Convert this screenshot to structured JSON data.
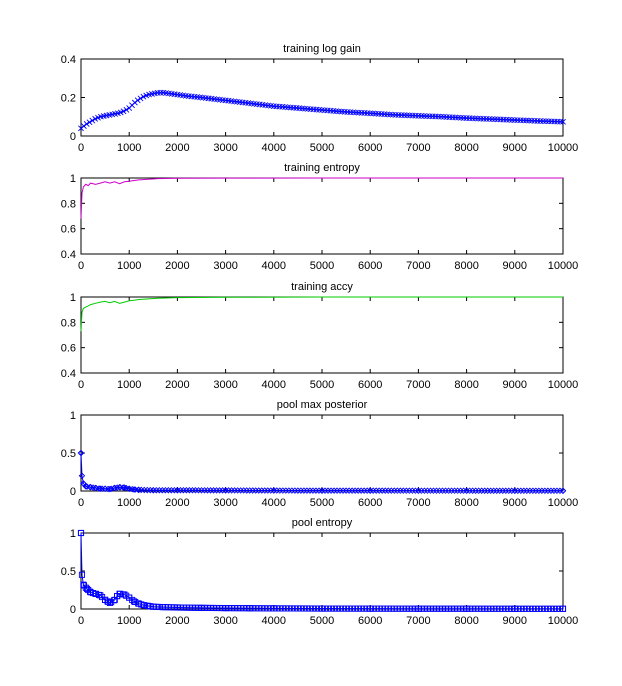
{
  "figure": {
    "background": "#ffffff"
  },
  "chart_data": [
    {
      "type": "line",
      "title": "training log gain",
      "xlabel": "",
      "ylabel": "",
      "xlim": [
        0,
        10000
      ],
      "ylim": [
        0,
        0.4
      ],
      "xticks": [
        0,
        1000,
        2000,
        3000,
        4000,
        5000,
        6000,
        7000,
        8000,
        9000,
        10000
      ],
      "yticks": [
        0,
        0.2,
        0.4
      ],
      "grid": false,
      "series": [
        {
          "color": "#0000ff",
          "marker": "x",
          "x": [
            0,
            100,
            200,
            300,
            400,
            500,
            600,
            700,
            800,
            900,
            1000,
            1100,
            1200,
            1300,
            1400,
            1500,
            1600,
            1700,
            1800,
            2000,
            2200,
            2500,
            3000,
            3500,
            4000,
            4500,
            5000,
            5500,
            6000,
            6500,
            7000,
            7500,
            8000,
            8500,
            9000,
            9500,
            10000
          ],
          "y": [
            0.04,
            0.06,
            0.075,
            0.09,
            0.1,
            0.105,
            0.11,
            0.115,
            0.12,
            0.13,
            0.145,
            0.17,
            0.19,
            0.205,
            0.215,
            0.22,
            0.225,
            0.225,
            0.222,
            0.215,
            0.208,
            0.2,
            0.185,
            0.17,
            0.155,
            0.145,
            0.135,
            0.125,
            0.118,
            0.11,
            0.105,
            0.1,
            0.093,
            0.088,
            0.083,
            0.078,
            0.074
          ]
        }
      ]
    },
    {
      "type": "line",
      "title": "training entropy",
      "xlabel": "",
      "ylabel": "",
      "xlim": [
        0,
        10000
      ],
      "ylim": [
        0.4,
        1
      ],
      "xticks": [
        0,
        1000,
        2000,
        3000,
        4000,
        5000,
        6000,
        7000,
        8000,
        9000,
        10000
      ],
      "yticks": [
        0.4,
        0.6,
        0.8,
        1
      ],
      "grid": false,
      "series": [
        {
          "color": "#cc00cc",
          "marker": "none",
          "x": [
            0,
            20,
            50,
            100,
            150,
            200,
            300,
            400,
            500,
            600,
            700,
            800,
            900,
            1000,
            1100,
            1200,
            1400,
            1600,
            2000,
            3000,
            5000,
            7000,
            10000
          ],
          "y": [
            0.68,
            0.88,
            0.93,
            0.95,
            0.94,
            0.96,
            0.95,
            0.96,
            0.97,
            0.96,
            0.97,
            0.955,
            0.97,
            0.975,
            0.98,
            0.985,
            0.99,
            0.995,
            0.998,
            0.999,
            1.0,
            1.0,
            1.0
          ]
        }
      ]
    },
    {
      "type": "line",
      "title": "training accy",
      "xlabel": "",
      "ylabel": "",
      "xlim": [
        0,
        10000
      ],
      "ylim": [
        0.4,
        1
      ],
      "xticks": [
        0,
        1000,
        2000,
        3000,
        4000,
        5000,
        6000,
        7000,
        8000,
        9000,
        10000
      ],
      "yticks": [
        0.4,
        0.6,
        0.8,
        1
      ],
      "grid": false,
      "series": [
        {
          "color": "#00cc00",
          "marker": "none",
          "x": [
            0,
            20,
            50,
            100,
            150,
            200,
            300,
            400,
            500,
            600,
            700,
            800,
            900,
            1000,
            1100,
            1200,
            1400,
            1600,
            2000,
            3000,
            5000,
            7000,
            10000
          ],
          "y": [
            0.73,
            0.88,
            0.91,
            0.92,
            0.93,
            0.94,
            0.95,
            0.96,
            0.965,
            0.955,
            0.965,
            0.95,
            0.96,
            0.97,
            0.975,
            0.98,
            0.985,
            0.99,
            0.995,
            0.998,
            1.0,
            1.0,
            1.0
          ]
        }
      ]
    },
    {
      "type": "line",
      "title": "pool max posterior",
      "xlabel": "",
      "ylabel": "",
      "xlim": [
        0,
        10000
      ],
      "ylim": [
        0,
        1
      ],
      "xticks": [
        0,
        1000,
        2000,
        3000,
        4000,
        5000,
        6000,
        7000,
        8000,
        9000,
        10000
      ],
      "yticks": [
        0,
        0.5,
        1
      ],
      "grid": false,
      "series": [
        {
          "color": "#0000ff",
          "marker": "diamond",
          "x": [
            0,
            20,
            50,
            100,
            200,
            300,
            400,
            500,
            600,
            700,
            800,
            900,
            1000,
            1100,
            1200,
            1500,
            2000,
            3000,
            4000,
            5000,
            6000,
            7000,
            8000,
            9000,
            10000
          ],
          "y": [
            0.5,
            0.2,
            0.1,
            0.06,
            0.05,
            0.04,
            0.03,
            0.03,
            0.025,
            0.04,
            0.05,
            0.045,
            0.03,
            0.02,
            0.015,
            0.01,
            0.01,
            0.008,
            0.006,
            0.005,
            0.005,
            0.004,
            0.004,
            0.003,
            0.003
          ]
        }
      ]
    },
    {
      "type": "line",
      "title": "pool entropy",
      "xlabel": "",
      "ylabel": "",
      "xlim": [
        0,
        10000
      ],
      "ylim": [
        0,
        1
      ],
      "xticks": [
        0,
        1000,
        2000,
        3000,
        4000,
        5000,
        6000,
        7000,
        8000,
        9000,
        10000
      ],
      "yticks": [
        0,
        0.5,
        1
      ],
      "grid": false,
      "series": [
        {
          "color": "#0000ff",
          "marker": "square",
          "x": [
            0,
            20,
            50,
            100,
            150,
            200,
            300,
            400,
            500,
            550,
            600,
            700,
            750,
            800,
            900,
            1000,
            1100,
            1200,
            1300,
            1400,
            1500,
            1700,
            2000,
            2500,
            3000,
            3500,
            4000,
            5000,
            6000,
            7000,
            8000,
            9000,
            10000
          ],
          "y": [
            1.0,
            0.45,
            0.32,
            0.28,
            0.25,
            0.22,
            0.2,
            0.18,
            0.12,
            0.1,
            0.08,
            0.12,
            0.17,
            0.2,
            0.19,
            0.15,
            0.1,
            0.07,
            0.05,
            0.04,
            0.03,
            0.025,
            0.02,
            0.015,
            0.012,
            0.01,
            0.008,
            0.006,
            0.005,
            0.004,
            0.004,
            0.003,
            0.003
          ]
        }
      ]
    }
  ]
}
